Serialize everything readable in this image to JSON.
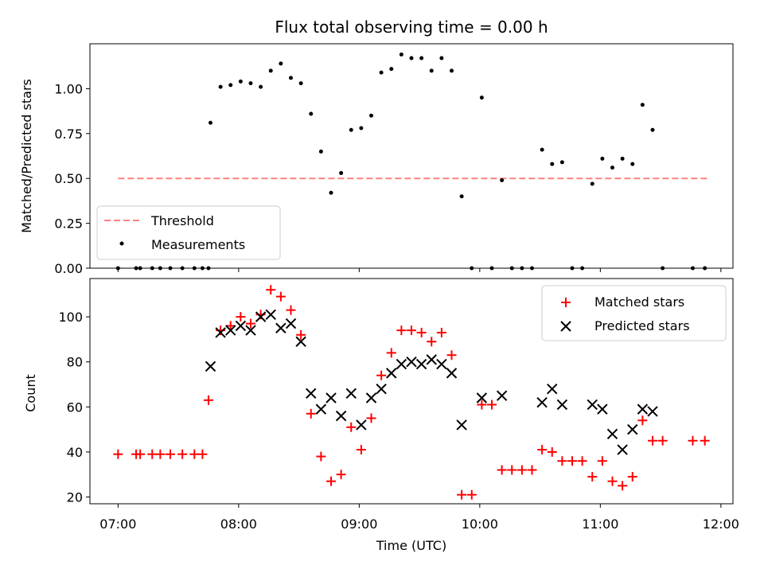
{
  "chart_data": [
    {
      "type": "scatter",
      "title": "Flux total observing time = 0.00 h",
      "xlabel": "",
      "ylabel": "Matched/Predicted stars",
      "xlim": [
        "06:46",
        "12:06"
      ],
      "ylim": [
        0,
        1.25
      ],
      "yticks": [
        "0.00",
        "0.25",
        "0.50",
        "0.75",
        "1.00"
      ],
      "ytick_values": [
        0,
        0.25,
        0.5,
        0.75,
        1.0
      ],
      "legend_position": "lower-left",
      "series": [
        {
          "name": "Threshold",
          "style": "dashed-line",
          "color": "#ff7f7f",
          "points": [
            [
              "07:00",
              0.5
            ],
            [
              "11:54",
              0.5
            ]
          ]
        },
        {
          "name": "Measurements",
          "style": "dots",
          "color": "#000000",
          "points": [
            [
              "07:00",
              0.0
            ],
            [
              "07:09",
              0.0
            ],
            [
              "07:11",
              0.0
            ],
            [
              "07:17",
              0.0
            ],
            [
              "07:21",
              0.0
            ],
            [
              "07:26",
              0.0
            ],
            [
              "07:32",
              0.0
            ],
            [
              "07:38",
              0.0
            ],
            [
              "07:42",
              0.0
            ],
            [
              "07:45",
              0.0
            ],
            [
              "07:46",
              0.81
            ],
            [
              "07:51",
              1.01
            ],
            [
              "07:56",
              1.02
            ],
            [
              "08:01",
              1.04
            ],
            [
              "08:06",
              1.03
            ],
            [
              "08:11",
              1.01
            ],
            [
              "08:16",
              1.1
            ],
            [
              "08:21",
              1.14
            ],
            [
              "08:26",
              1.06
            ],
            [
              "08:31",
              1.03
            ],
            [
              "08:36",
              0.86
            ],
            [
              "08:41",
              0.65
            ],
            [
              "08:46",
              0.42
            ],
            [
              "08:51",
              0.53
            ],
            [
              "08:56",
              0.77
            ],
            [
              "09:01",
              0.78
            ],
            [
              "09:06",
              0.85
            ],
            [
              "09:11",
              1.09
            ],
            [
              "09:16",
              1.11
            ],
            [
              "09:21",
              1.19
            ],
            [
              "09:26",
              1.17
            ],
            [
              "09:31",
              1.17
            ],
            [
              "09:36",
              1.1
            ],
            [
              "09:41",
              1.17
            ],
            [
              "09:46",
              1.1
            ],
            [
              "09:51",
              0.4
            ],
            [
              "09:56",
              0.0
            ],
            [
              "10:01",
              0.95
            ],
            [
              "10:06",
              0.0
            ],
            [
              "10:11",
              0.49
            ],
            [
              "10:16",
              0.0
            ],
            [
              "10:21",
              0.0
            ],
            [
              "10:26",
              0.0
            ],
            [
              "10:31",
              0.66
            ],
            [
              "10:36",
              0.58
            ],
            [
              "10:41",
              0.59
            ],
            [
              "10:46",
              0.0
            ],
            [
              "10:51",
              0.0
            ],
            [
              "10:56",
              0.47
            ],
            [
              "11:01",
              0.61
            ],
            [
              "11:06",
              0.56
            ],
            [
              "11:11",
              0.61
            ],
            [
              "11:16",
              0.58
            ],
            [
              "11:21",
              0.91
            ],
            [
              "11:26",
              0.77
            ],
            [
              "11:31",
              0.0
            ],
            [
              "11:46",
              0.0
            ],
            [
              "11:52",
              0.0
            ]
          ]
        }
      ]
    },
    {
      "type": "scatter",
      "title": "",
      "xlabel": "Time (UTC)",
      "ylabel": "Count",
      "xlim": [
        "06:46",
        "12:06"
      ],
      "ylim": [
        17,
        117
      ],
      "xticks": [
        "07:00",
        "08:00",
        "09:00",
        "10:00",
        "11:00",
        "12:00"
      ],
      "yticks": [
        "20",
        "40",
        "60",
        "80",
        "100"
      ],
      "ytick_values": [
        20,
        40,
        60,
        80,
        100
      ],
      "legend_position": "upper-right",
      "series": [
        {
          "name": "Matched stars",
          "style": "plus",
          "color": "#ff0000",
          "points": [
            [
              "07:00",
              39
            ],
            [
              "07:09",
              39
            ],
            [
              "07:11",
              39
            ],
            [
              "07:17",
              39
            ],
            [
              "07:21",
              39
            ],
            [
              "07:26",
              39
            ],
            [
              "07:32",
              39
            ],
            [
              "07:38",
              39
            ],
            [
              "07:42",
              39
            ],
            [
              "07:45",
              63
            ],
            [
              "07:51",
              94
            ],
            [
              "07:56",
              96
            ],
            [
              "08:01",
              100
            ],
            [
              "08:06",
              97
            ],
            [
              "08:11",
              101
            ],
            [
              "08:16",
              112
            ],
            [
              "08:21",
              109
            ],
            [
              "08:26",
              103
            ],
            [
              "08:31",
              92
            ],
            [
              "08:36",
              57
            ],
            [
              "08:41",
              38
            ],
            [
              "08:46",
              27
            ],
            [
              "08:51",
              30
            ],
            [
              "08:56",
              51
            ],
            [
              "09:01",
              41
            ],
            [
              "09:06",
              55
            ],
            [
              "09:11",
              74
            ],
            [
              "09:16",
              84
            ],
            [
              "09:21",
              94
            ],
            [
              "09:26",
              94
            ],
            [
              "09:31",
              93
            ],
            [
              "09:36",
              89
            ],
            [
              "09:41",
              93
            ],
            [
              "09:46",
              83
            ],
            [
              "09:51",
              21
            ],
            [
              "09:56",
              21
            ],
            [
              "10:01",
              61
            ],
            [
              "10:06",
              61
            ],
            [
              "10:11",
              32
            ],
            [
              "10:16",
              32
            ],
            [
              "10:21",
              32
            ],
            [
              "10:26",
              32
            ],
            [
              "10:31",
              41
            ],
            [
              "10:36",
              40
            ],
            [
              "10:41",
              36
            ],
            [
              "10:46",
              36
            ],
            [
              "10:51",
              36
            ],
            [
              "10:56",
              29
            ],
            [
              "11:01",
              36
            ],
            [
              "11:06",
              27
            ],
            [
              "11:11",
              25
            ],
            [
              "11:16",
              29
            ],
            [
              "11:21",
              54
            ],
            [
              "11:26",
              45
            ],
            [
              "11:31",
              45
            ],
            [
              "11:46",
              45
            ],
            [
              "11:52",
              45
            ]
          ]
        },
        {
          "name": "Predicted stars",
          "style": "x",
          "color": "#000000",
          "points": [
            [
              "07:46",
              78
            ],
            [
              "07:51",
              93
            ],
            [
              "07:56",
              94
            ],
            [
              "08:01",
              96
            ],
            [
              "08:06",
              94
            ],
            [
              "08:11",
              100
            ],
            [
              "08:16",
              101
            ],
            [
              "08:21",
              95
            ],
            [
              "08:26",
              97
            ],
            [
              "08:31",
              89
            ],
            [
              "08:36",
              66
            ],
            [
              "08:41",
              59
            ],
            [
              "08:46",
              64
            ],
            [
              "08:51",
              56
            ],
            [
              "08:56",
              66
            ],
            [
              "09:01",
              52
            ],
            [
              "09:06",
              64
            ],
            [
              "09:11",
              68
            ],
            [
              "09:16",
              75
            ],
            [
              "09:21",
              79
            ],
            [
              "09:26",
              80
            ],
            [
              "09:31",
              79
            ],
            [
              "09:36",
              81
            ],
            [
              "09:41",
              79
            ],
            [
              "09:46",
              75
            ],
            [
              "09:51",
              52
            ],
            [
              "10:01",
              64
            ],
            [
              "10:11",
              65
            ],
            [
              "10:31",
              62
            ],
            [
              "10:36",
              68
            ],
            [
              "10:41",
              61
            ],
            [
              "10:56",
              61
            ],
            [
              "11:01",
              59
            ],
            [
              "11:06",
              48
            ],
            [
              "11:11",
              41
            ],
            [
              "11:16",
              50
            ],
            [
              "11:21",
              59
            ],
            [
              "11:26",
              58
            ]
          ]
        }
      ]
    }
  ]
}
